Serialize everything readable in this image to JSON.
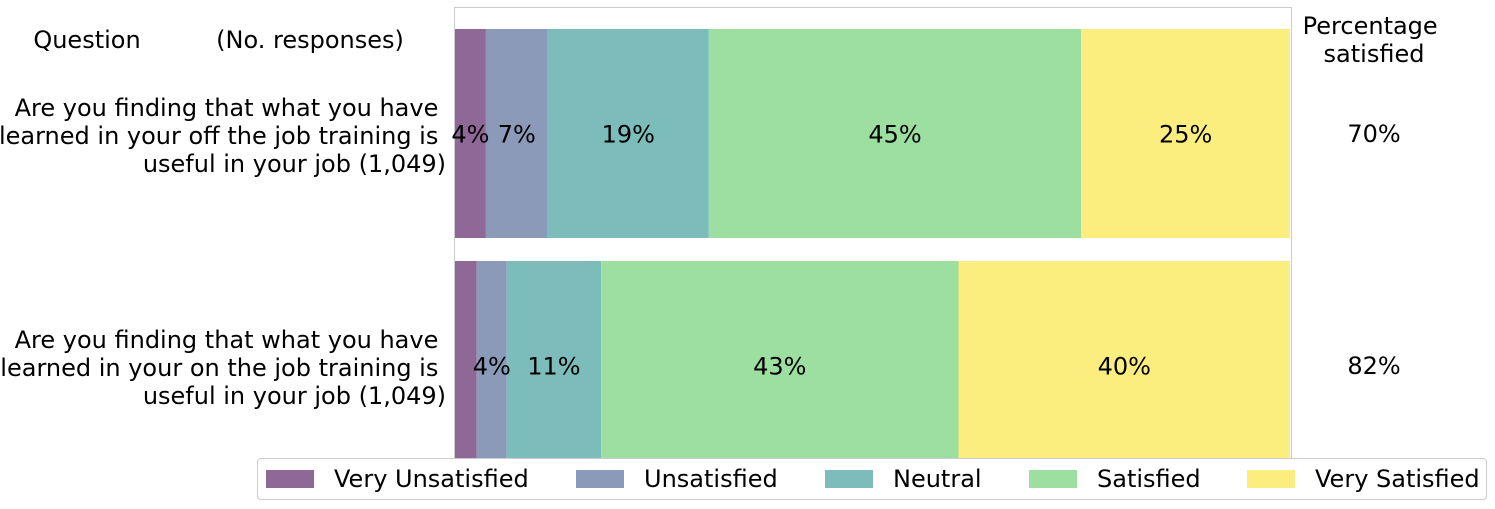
{
  "chart_data": {
    "type": "bar",
    "orientation": "horizontal-stacked",
    "header": {
      "question_label": "Question",
      "responses_label": "(No. responses)",
      "percentage_label": [
        "Percentage",
        "satisfied"
      ]
    },
    "categories": [
      [
        "Are you finding that what you have",
        "learned in your off the job training is",
        "useful in your job (1,049)"
      ],
      [
        "Are you finding that what you have",
        "learned in your on the job training is",
        "useful in your job (1,049)"
      ]
    ],
    "series": [
      {
        "name": "Very Unsatisfied",
        "color": "#8f6898",
        "values": [
          3.7,
          2.6
        ],
        "labels": [
          "4%",
          ""
        ]
      },
      {
        "name": "Unsatisfied",
        "color": "#8a9ab8",
        "values": [
          7.4,
          3.6
        ],
        "labels": [
          "7%",
          "4%"
        ]
      },
      {
        "name": "Neutral",
        "color": "#7cbdbb",
        "values": [
          19.3,
          11.3
        ],
        "labels": [
          "19%",
          "11%"
        ]
      },
      {
        "name": "Satisfied",
        "color": "#9ddfa0",
        "values": [
          44.6,
          42.8
        ],
        "labels": [
          "45%",
          "43%"
        ]
      },
      {
        "name": "Very Satisfied",
        "color": "#fbee7f",
        "values": [
          25.0,
          39.7
        ],
        "labels": [
          "25%",
          "40%"
        ]
      }
    ],
    "percentage_satisfied": [
      "70%",
      "82%"
    ],
    "xlim": [
      0,
      100
    ],
    "grid": false,
    "legend_position": "bottom"
  }
}
